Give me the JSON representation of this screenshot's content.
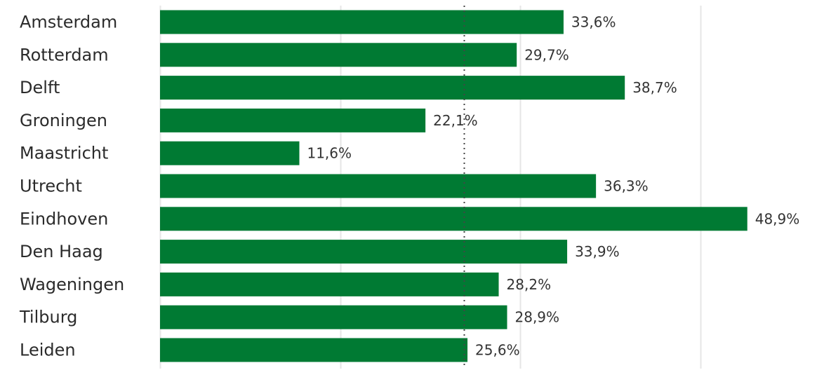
{
  "chart_data": {
    "type": "bar",
    "orientation": "horizontal",
    "categories": [
      "Amsterdam",
      "Rotterdam",
      "Delft",
      "Groningen",
      "Maastricht",
      "Utrecht",
      "Eindhoven",
      "Den Haag",
      "Wageningen",
      "Tilburg",
      "Leiden"
    ],
    "values": [
      33.6,
      29.7,
      38.7,
      22.1,
      11.6,
      36.3,
      48.9,
      33.9,
      28.2,
      28.9,
      25.6
    ],
    "value_labels": [
      "33,6%",
      "29,7%",
      "38,7%",
      "22,1%",
      "11,6%",
      "36,3%",
      "48,9%",
      "33,9%",
      "28,2%",
      "28,9%",
      "25,6%"
    ],
    "title": "",
    "xlabel": "",
    "ylabel": "",
    "xlim": [
      0,
      45
    ],
    "gridlines_at": [
      0,
      15,
      30,
      45
    ],
    "reference_line": 25.3,
    "grid": true,
    "legend": "none",
    "bar_color": "#007a33",
    "grid_color": "#e6e6e6",
    "reference_line_color": "#444444"
  }
}
